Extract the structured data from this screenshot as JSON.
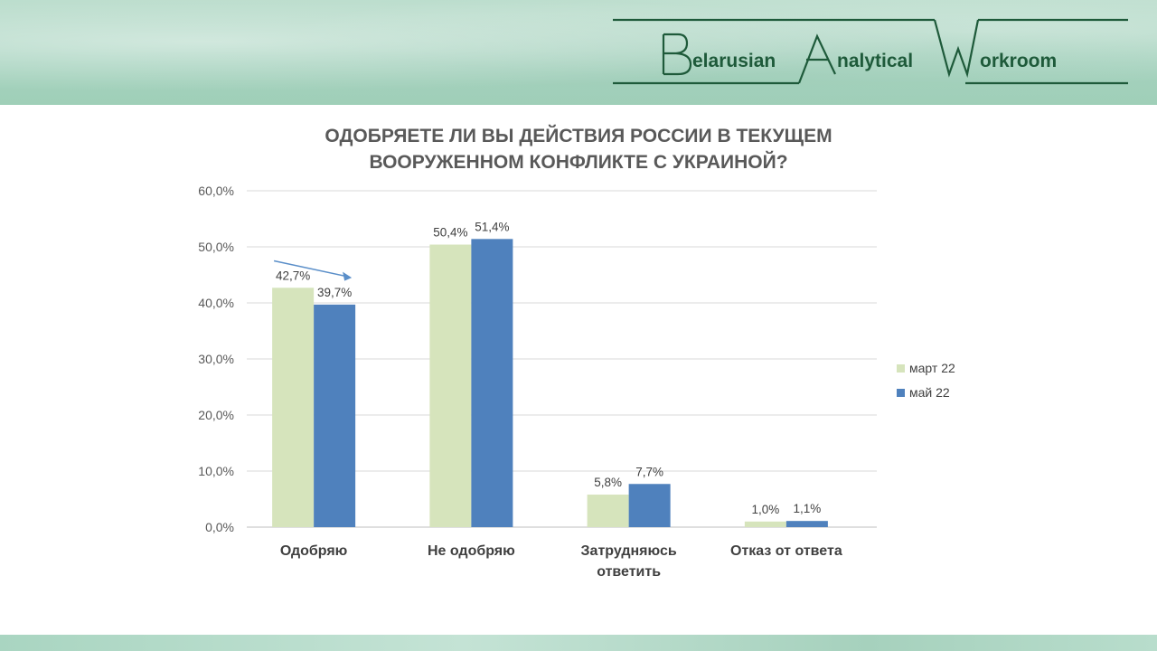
{
  "logo": {
    "text": "Belarusian Analytical Workroom"
  },
  "chart_data": {
    "type": "bar",
    "title_lines": [
      "ОДОБРЯЕТЕ ЛИ ВЫ ДЕЙСТВИЯ РОССИИ В ТЕКУЩЕМ",
      "ВООРУЖЕННОМ КОНФЛИКТЕ С УКРАИНОЙ?"
    ],
    "categories": [
      [
        "Одобряю"
      ],
      [
        "Не одобряю"
      ],
      [
        "Затрудняюсь",
        "ответить"
      ],
      [
        "Отказ от ответа"
      ]
    ],
    "series": [
      {
        "name": "март 22",
        "color": "#d6e4bc",
        "values": [
          42.7,
          50.4,
          5.8,
          1.0
        ],
        "labels": [
          "42,7%",
          "50,4%",
          "5,8%",
          "1,0%"
        ]
      },
      {
        "name": "май 22",
        "color": "#4f81bd",
        "values": [
          39.7,
          51.4,
          7.7,
          1.1
        ],
        "labels": [
          "39,7%",
          "51,4%",
          "7,7%",
          "1,1%"
        ]
      }
    ],
    "ylim": [
      0,
      60
    ],
    "yticks": [
      0,
      10,
      20,
      30,
      40,
      50,
      60
    ],
    "ytick_labels": [
      "0,0%",
      "10,0%",
      "20,0%",
      "30,0%",
      "40,0%",
      "50,0%",
      "60,0%"
    ],
    "grid": true,
    "legend_position": "right",
    "annotation": {
      "type": "arrow",
      "category_index": 0,
      "from_value": 47.5,
      "to_value": 44.5,
      "color": "#5b8fc9"
    }
  }
}
